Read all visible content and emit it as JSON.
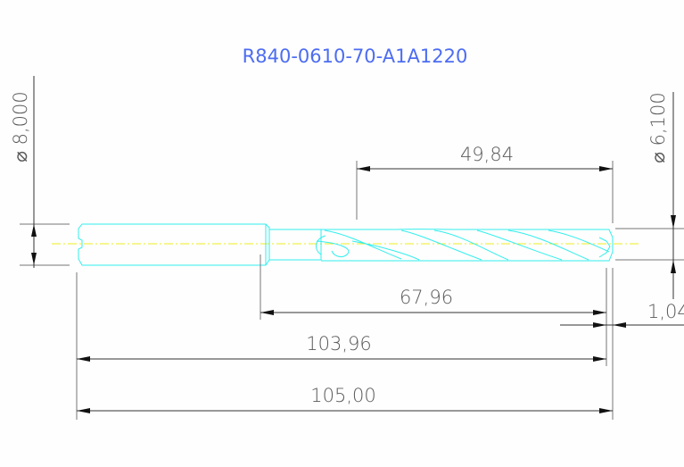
{
  "title": "R840-0610-70-A1A1220",
  "dimensions": {
    "shank_diameter": "⌀ 8,000",
    "tip_diameter": "⌀ 6,100",
    "flute_length": "49,84",
    "body_length": "67,96",
    "point_length": "1,04",
    "length_to_corner": "103,96",
    "overall_length": "105,00"
  },
  "colors": {
    "title": "#4d6cf2",
    "part_outline": "#33eeee",
    "centerline": "#eeee22",
    "dimension": "#333333"
  }
}
